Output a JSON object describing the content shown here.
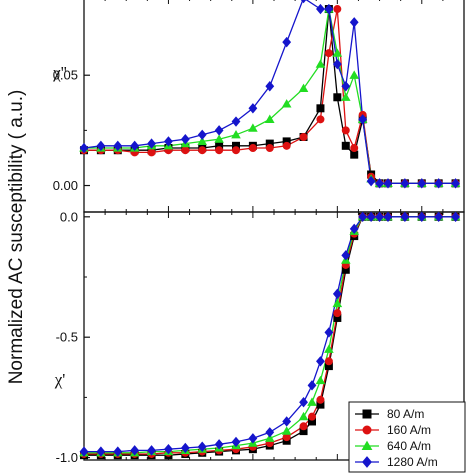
{
  "chart_data": {
    "type": "line",
    "ylabel": "Normalized AC susceptibility ( a.u.)",
    "legend_position": "bottom-right",
    "series_styles": [
      {
        "name": "80 A/m",
        "color": "#000000",
        "marker": "square"
      },
      {
        "name": "160 A/m",
        "color": "#dd1111",
        "marker": "circle"
      },
      {
        "name": "640 A/m",
        "color": "#22dd22",
        "marker": "triangle"
      },
      {
        "name": "1280 A/m",
        "color": "#1515cc",
        "marker": "diamond"
      }
    ],
    "panels": [
      {
        "id": "top",
        "ylabel": "χ''",
        "ylim": [
          -0.012,
          0.085
        ],
        "yticks": [
          0.0,
          0.05
        ],
        "ytick_labels": [
          "0.00",
          "0.05"
        ],
        "xlim": [
          0,
          45
        ],
        "series": [
          {
            "name": "80 A/m",
            "x": [
              0,
              2,
              4,
              6,
              8,
              10,
              12,
              14,
              16,
              18,
              20,
              22,
              24,
              26,
              28,
              29,
              30,
              31,
              32,
              33,
              34,
              35,
              36,
              38,
              40,
              42,
              44
            ],
            "y": [
              0.016,
              0.016,
              0.016,
              0.016,
              0.016,
              0.017,
              0.017,
              0.017,
              0.018,
              0.018,
              0.018,
              0.019,
              0.02,
              0.022,
              0.035,
              0.08,
              0.04,
              0.018,
              0.014,
              0.03,
              0.005,
              0.001,
              0.001,
              0.001,
              0.001,
              0.001,
              0.001
            ]
          },
          {
            "name": "160 A/m",
            "x": [
              0,
              2,
              4,
              6,
              8,
              10,
              12,
              14,
              16,
              18,
              20,
              22,
              24,
              26,
              28,
              29,
              30,
              31,
              32,
              33,
              34,
              35,
              36,
              38,
              40,
              42,
              44
            ],
            "y": [
              0.016,
              0.016,
              0.016,
              0.015,
              0.015,
              0.016,
              0.016,
              0.016,
              0.016,
              0.016,
              0.017,
              0.017,
              0.018,
              0.022,
              0.03,
              0.06,
              0.08,
              0.025,
              0.017,
              0.032,
              0.004,
              0.001,
              0.001,
              0.001,
              0.001,
              0.001,
              0.001
            ]
          },
          {
            "name": "640 A/m",
            "x": [
              0,
              2,
              4,
              6,
              8,
              10,
              12,
              14,
              16,
              18,
              20,
              22,
              24,
              26,
              28,
              29,
              30,
              31,
              32,
              33,
              34,
              35,
              36,
              38,
              40,
              42,
              44
            ],
            "y": [
              0.017,
              0.017,
              0.017,
              0.017,
              0.018,
              0.018,
              0.019,
              0.02,
              0.021,
              0.023,
              0.026,
              0.03,
              0.037,
              0.044,
              0.055,
              0.08,
              0.06,
              0.04,
              0.05,
              0.03,
              0.003,
              0.001,
              0.001,
              0.001,
              0.001,
              0.001,
              0.001
            ]
          },
          {
            "name": "1280 A/m",
            "x": [
              0,
              2,
              4,
              6,
              8,
              10,
              12,
              14,
              16,
              18,
              20,
              22,
              24,
              26,
              28,
              29,
              30,
              31,
              32,
              33,
              34,
              35,
              36,
              38,
              40,
              42,
              44
            ],
            "y": [
              0.017,
              0.018,
              0.018,
              0.018,
              0.019,
              0.02,
              0.021,
              0.023,
              0.025,
              0.029,
              0.035,
              0.045,
              0.065,
              0.085,
              0.08,
              0.08,
              0.055,
              0.045,
              0.074,
              0.03,
              0.002,
              0.001,
              0.001,
              0.001,
              0.001,
              0.001,
              0.001
            ]
          }
        ]
      },
      {
        "id": "bottom",
        "ylabel": "χ'",
        "ylim": [
          -1.01,
          0.02
        ],
        "yticks": [
          0.0,
          -0.5,
          -1.0
        ],
        "ytick_labels": [
          "0.0",
          "-0.5",
          "-1.0"
        ],
        "xlim": [
          0,
          45
        ],
        "series": [
          {
            "name": "80 A/m",
            "x": [
              0,
              2,
              4,
              6,
              8,
              10,
              12,
              14,
              16,
              18,
              20,
              22,
              24,
              26,
              27,
              28,
              29,
              30,
              31,
              32,
              33,
              34,
              35,
              36,
              38,
              40,
              42,
              44
            ],
            "y": [
              -0.99,
              -0.99,
              -0.99,
              -0.99,
              -0.99,
              -0.99,
              -0.985,
              -0.98,
              -0.975,
              -0.97,
              -0.965,
              -0.95,
              -0.93,
              -0.89,
              -0.85,
              -0.78,
              -0.62,
              -0.42,
              -0.22,
              -0.08,
              0.0,
              0.0,
              0.0,
              0.0,
              0.0,
              0.0,
              0.0,
              0.0
            ]
          },
          {
            "name": "160 A/m",
            "x": [
              0,
              2,
              4,
              6,
              8,
              10,
              12,
              14,
              16,
              18,
              20,
              22,
              24,
              26,
              27,
              28,
              29,
              30,
              31,
              32,
              33,
              34,
              35,
              36,
              38,
              40,
              42,
              44
            ],
            "y": [
              -0.985,
              -0.985,
              -0.985,
              -0.985,
              -0.985,
              -0.98,
              -0.98,
              -0.975,
              -0.97,
              -0.965,
              -0.955,
              -0.94,
              -0.915,
              -0.87,
              -0.83,
              -0.76,
              -0.6,
              -0.4,
              -0.2,
              -0.07,
              0.0,
              0.0,
              0.0,
              0.0,
              0.0,
              0.0,
              0.0,
              0.0
            ]
          },
          {
            "name": "640 A/m",
            "x": [
              0,
              2,
              4,
              6,
              8,
              10,
              12,
              14,
              16,
              18,
              20,
              22,
              24,
              26,
              27,
              28,
              29,
              30,
              31,
              32,
              33,
              34,
              35,
              36,
              38,
              40,
              42,
              44
            ],
            "y": [
              -0.98,
              -0.98,
              -0.98,
              -0.98,
              -0.975,
              -0.975,
              -0.97,
              -0.965,
              -0.96,
              -0.95,
              -0.94,
              -0.92,
              -0.89,
              -0.83,
              -0.77,
              -0.68,
              -0.55,
              -0.36,
              -0.18,
              -0.06,
              0.0,
              0.0,
              0.0,
              0.0,
              0.0,
              0.0,
              0.0,
              0.0
            ]
          },
          {
            "name": "1280 A/m",
            "x": [
              0,
              2,
              4,
              6,
              8,
              10,
              12,
              14,
              16,
              18,
              20,
              22,
              24,
              26,
              27,
              28,
              29,
              30,
              31,
              32,
              33,
              34,
              35,
              36,
              38,
              40,
              42,
              44
            ],
            "y": [
              -0.975,
              -0.975,
              -0.975,
              -0.97,
              -0.97,
              -0.965,
              -0.96,
              -0.955,
              -0.945,
              -0.935,
              -0.92,
              -0.895,
              -0.85,
              -0.77,
              -0.7,
              -0.6,
              -0.48,
              -0.32,
              -0.16,
              -0.05,
              0.0,
              0.0,
              0.0,
              0.0,
              0.0,
              0.0,
              0.0,
              0.0
            ]
          }
        ]
      }
    ]
  }
}
